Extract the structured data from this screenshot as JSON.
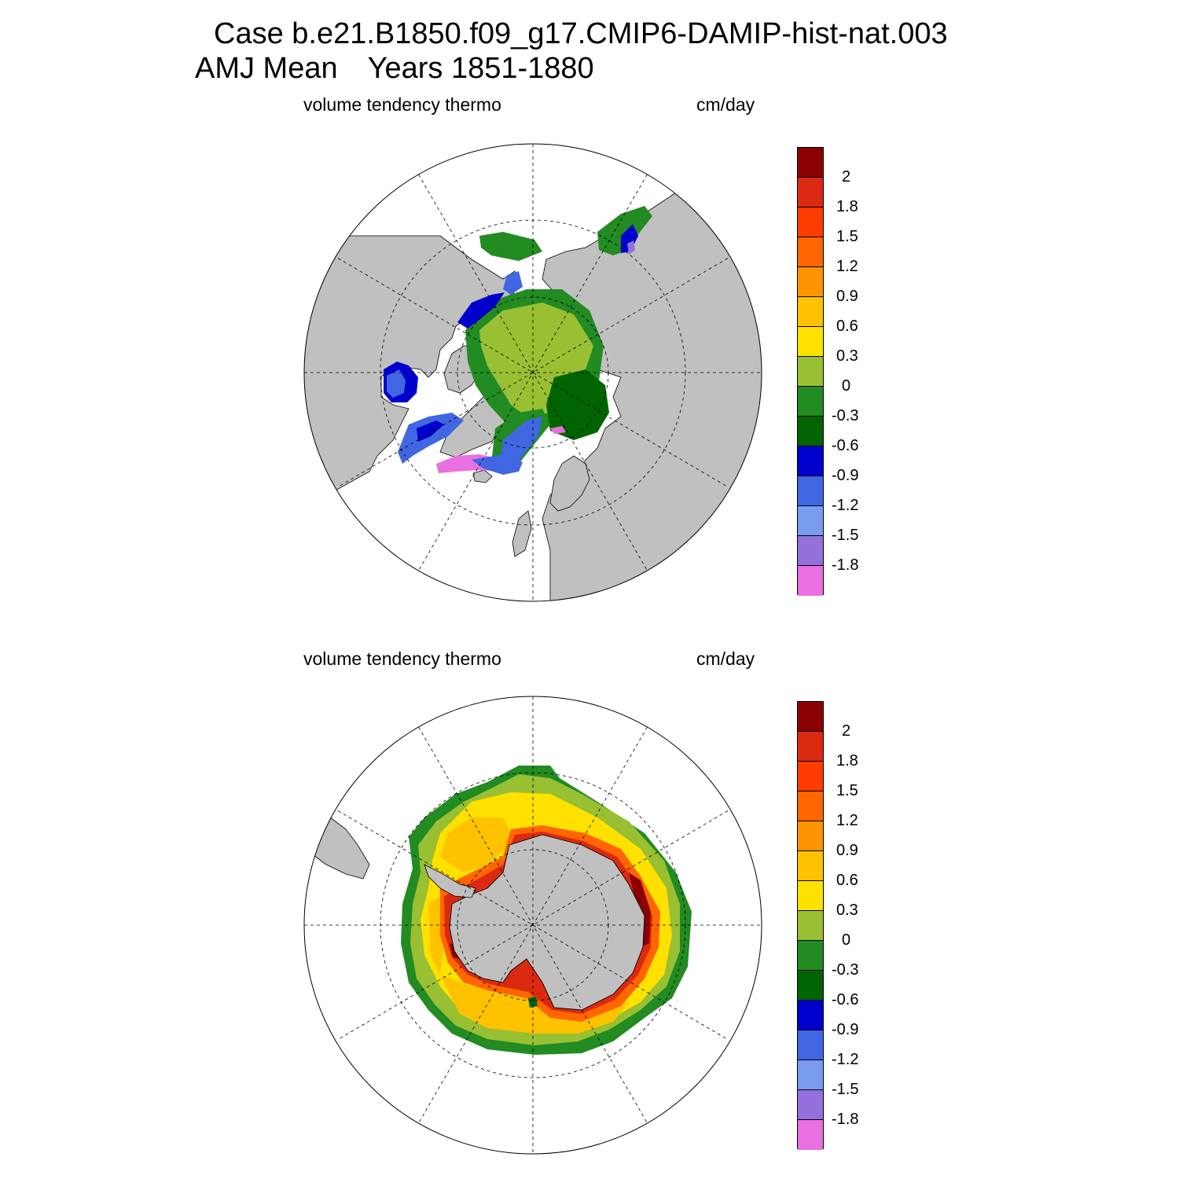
{
  "figure": {
    "title_line1": "Case b.e21.B1850.f09_g17.CMIP6-DAMIP-hist-nat.003",
    "title_line2_left": "AMJ Mean",
    "title_line2_right": "Years 1851-1880"
  },
  "panels": [
    {
      "id": "north",
      "hemisphere": "Northern Hemisphere",
      "left_label": "volume tendency thermo",
      "right_label": "cm/day"
    },
    {
      "id": "south",
      "hemisphere": "Southern Hemisphere",
      "left_label": "volume tendency thermo",
      "right_label": "cm/day"
    }
  ],
  "legend": {
    "units": "cm/day",
    "bins_top_to_bottom": [
      {
        "color": "#8b0000"
      },
      {
        "color": "#dc2a12"
      },
      {
        "color": "#ff3c00"
      },
      {
        "color": "#ff6600"
      },
      {
        "color": "#ff9400"
      },
      {
        "color": "#ffc200"
      },
      {
        "color": "#ffe100"
      },
      {
        "color": "#99bf33"
      },
      {
        "color": "#228b22"
      },
      {
        "color": "#006400"
      },
      {
        "color": "#0000cd"
      },
      {
        "color": "#4166e1"
      },
      {
        "color": "#7a9cf0"
      },
      {
        "color": "#9370db"
      },
      {
        "color": "#e870e0"
      }
    ],
    "tick_labels_top_to_bottom": [
      "2",
      "1.8",
      "1.5",
      "1.2",
      "0.9",
      "0.6",
      "0.3",
      "0",
      "-0.3",
      "-0.6",
      "-0.9",
      "-1.2",
      "-1.5",
      "-1.8"
    ]
  },
  "colors": {
    "land": "#c0c0c0",
    "ocean": "#ffffff",
    "grid": "#000000"
  }
}
